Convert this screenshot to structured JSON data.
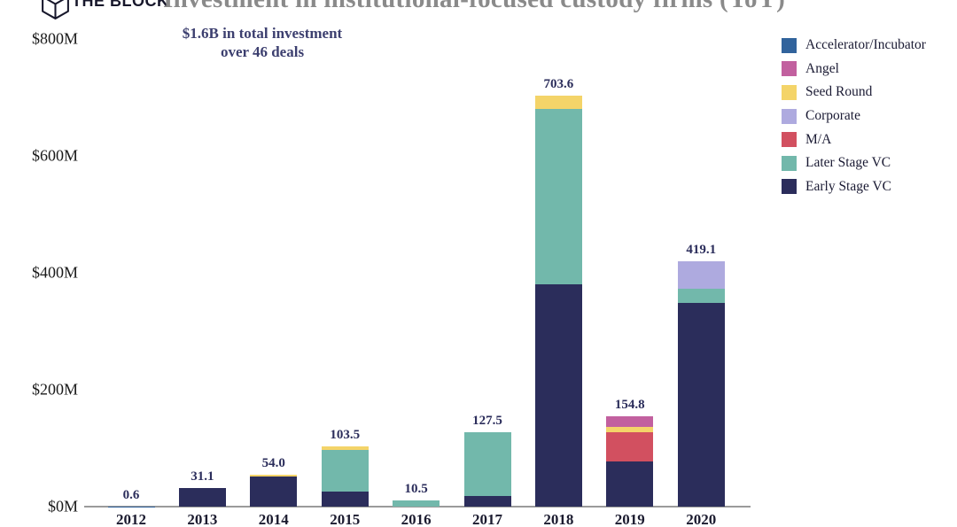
{
  "header": {
    "logo_text": "THE BLOCK",
    "subtitle_line1": "$1.6B in total investment",
    "subtitle_line2": "over 46 deals"
  },
  "colors": {
    "title_gray": "#8a8a8a",
    "subtitle_navy": "#3c3f6f",
    "label_navy": "#2b2d5b",
    "axis_line_gray": "#9b9b9b"
  },
  "chart_data": {
    "type": "bar",
    "stacked": true,
    "title": "Investment in institutional-focused custody firms (YoY)",
    "subtitle": "$1.6B in total investment over 46 deals",
    "xlabel": "",
    "ylabel": "",
    "ylim": [
      0,
      800
    ],
    "grid": false,
    "legend_position": "top-right",
    "categories": [
      "2012",
      "2013",
      "2014",
      "2015",
      "2016",
      "2017",
      "2018",
      "2019",
      "2020"
    ],
    "totals": [
      0.6,
      31.1,
      54.0,
      103.5,
      10.5,
      127.5,
      703.6,
      154.8,
      419.1
    ],
    "total_labels": [
      "0.6",
      "31.1",
      "54.0",
      "103.5",
      "10.5",
      "127.5",
      "703.6",
      "154.8",
      "419.1"
    ],
    "series": [
      {
        "name": "Early Stage VC",
        "color": "#2b2d5b",
        "values": [
          0,
          31.1,
          51.7,
          26.0,
          0,
          18.0,
          380.0,
          77.0,
          349.1
        ]
      },
      {
        "name": "M/A",
        "color": "#d25060",
        "values": [
          0,
          0,
          0,
          0,
          0,
          0,
          0,
          50.0,
          0
        ]
      },
      {
        "name": "Later Stage VC",
        "color": "#72b8ab",
        "values": [
          0,
          0,
          0,
          71.0,
          10.5,
          109.5,
          300.0,
          0,
          23.0
        ]
      },
      {
        "name": "Corporate",
        "color": "#aeaadf",
        "values": [
          0,
          0,
          0,
          0,
          0,
          0,
          0,
          0,
          47.0
        ]
      },
      {
        "name": "Seed Round",
        "color": "#f4d469",
        "values": [
          0,
          0,
          2.3,
          6.5,
          0,
          0,
          23.6,
          10.0,
          0
        ]
      },
      {
        "name": "Angel",
        "color": "#c2609f",
        "values": [
          0,
          0,
          0,
          0,
          0,
          0,
          0,
          17.8,
          0
        ]
      },
      {
        "name": "Accelerator/Incubator",
        "color": "#31639c",
        "values": [
          0.6,
          0,
          0,
          0,
          0,
          0,
          0,
          0,
          0
        ]
      }
    ],
    "legend": [
      {
        "label": "Accelerator/Incubator",
        "color": "#31639c"
      },
      {
        "label": "Angel",
        "color": "#c2609f"
      },
      {
        "label": "Seed Round",
        "color": "#f4d469"
      },
      {
        "label": "Corporate",
        "color": "#aeaadf"
      },
      {
        "label": "M/A",
        "color": "#d25060"
      },
      {
        "label": "Later Stage VC",
        "color": "#72b8ab"
      },
      {
        "label": "Early Stage VC",
        "color": "#2b2d5b"
      }
    ],
    "y_ticks": [
      {
        "label": "$800M",
        "value": 800
      },
      {
        "label": "$600M",
        "value": 600
      },
      {
        "label": "$400M",
        "value": 400
      },
      {
        "label": "$200M",
        "value": 200
      },
      {
        "label": "$0M",
        "value": 0
      }
    ]
  }
}
